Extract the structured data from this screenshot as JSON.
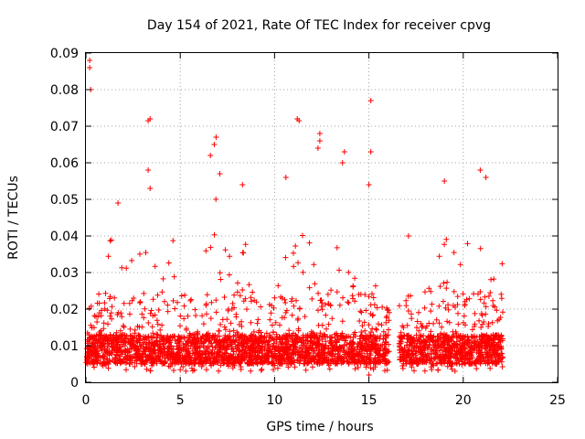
{
  "chart_data": {
    "type": "scatter",
    "title": "Day 154 of 2021, Rate Of TEC Index for receiver cpvg",
    "xlabel": "GPS time / hours",
    "ylabel": "ROTI / TECUs",
    "xlim": [
      0,
      25
    ],
    "ylim": [
      0,
      0.09
    ],
    "x_ticks": [
      0,
      5,
      10,
      15,
      20,
      25
    ],
    "x_tick_labels": [
      "0",
      "5",
      "10",
      "15",
      "20",
      "25"
    ],
    "y_ticks": [
      0,
      0.01,
      0.02,
      0.03,
      0.04,
      0.05,
      0.06,
      0.07,
      0.08,
      0.09
    ],
    "y_tick_labels": [
      "0",
      "0.01",
      "0.02",
      "0.03",
      "0.04",
      "0.05",
      "0.06",
      "0.07",
      "0.08",
      "0.09"
    ],
    "grid": true,
    "marker": "+",
    "color": "#ff0000",
    "x_range_with_data": [
      [
        0,
        16.1
      ],
      [
        16.6,
        22.1
      ]
    ],
    "baseline_band": [
      0.005,
      0.013
    ],
    "notable_points": [
      {
        "x": 0.2,
        "y": 0.088
      },
      {
        "x": 0.2,
        "y": 0.086
      },
      {
        "x": 0.25,
        "y": 0.08
      },
      {
        "x": 3.4,
        "y": 0.072
      },
      {
        "x": 3.3,
        "y": 0.0715
      },
      {
        "x": 3.3,
        "y": 0.058
      },
      {
        "x": 3.4,
        "y": 0.053
      },
      {
        "x": 6.9,
        "y": 0.067
      },
      {
        "x": 6.8,
        "y": 0.065
      },
      {
        "x": 6.6,
        "y": 0.062
      },
      {
        "x": 7.1,
        "y": 0.057
      },
      {
        "x": 11.2,
        "y": 0.072
      },
      {
        "x": 11.3,
        "y": 0.0715
      },
      {
        "x": 12.4,
        "y": 0.068
      },
      {
        "x": 12.4,
        "y": 0.066
      },
      {
        "x": 12.3,
        "y": 0.064
      },
      {
        "x": 13.7,
        "y": 0.063
      },
      {
        "x": 13.6,
        "y": 0.06
      },
      {
        "x": 15.1,
        "y": 0.077
      },
      {
        "x": 15.1,
        "y": 0.063
      },
      {
        "x": 15.0,
        "y": 0.054
      },
      {
        "x": 10.6,
        "y": 0.056
      },
      {
        "x": 20.9,
        "y": 0.058
      },
      {
        "x": 21.2,
        "y": 0.056
      },
      {
        "x": 19.0,
        "y": 0.055
      },
      {
        "x": 1.7,
        "y": 0.049
      },
      {
        "x": 8.3,
        "y": 0.054
      },
      {
        "x": 17.1,
        "y": 0.04
      },
      {
        "x": 15.0,
        "y": 0.002
      }
    ],
    "activity_envelope": [
      {
        "x": 0.0,
        "max": 0.025
      },
      {
        "x": 0.5,
        "max": 0.018
      },
      {
        "x": 1.0,
        "max": 0.035
      },
      {
        "x": 1.5,
        "max": 0.045
      },
      {
        "x": 2.0,
        "max": 0.03
      },
      {
        "x": 2.5,
        "max": 0.04
      },
      {
        "x": 3.0,
        "max": 0.045
      },
      {
        "x": 3.5,
        "max": 0.042
      },
      {
        "x": 4.0,
        "max": 0.036
      },
      {
        "x": 4.5,
        "max": 0.04
      },
      {
        "x": 5.0,
        "max": 0.043
      },
      {
        "x": 5.5,
        "max": 0.03
      },
      {
        "x": 6.0,
        "max": 0.014
      },
      {
        "x": 6.5,
        "max": 0.045
      },
      {
        "x": 7.0,
        "max": 0.055
      },
      {
        "x": 7.5,
        "max": 0.04
      },
      {
        "x": 8.0,
        "max": 0.038
      },
      {
        "x": 8.5,
        "max": 0.043
      },
      {
        "x": 9.0,
        "max": 0.03
      },
      {
        "x": 9.5,
        "max": 0.02
      },
      {
        "x": 10.0,
        "max": 0.025
      },
      {
        "x": 10.5,
        "max": 0.045
      },
      {
        "x": 11.0,
        "max": 0.04
      },
      {
        "x": 11.5,
        "max": 0.045
      },
      {
        "x": 12.0,
        "max": 0.036
      },
      {
        "x": 12.5,
        "max": 0.04
      },
      {
        "x": 13.0,
        "max": 0.032
      },
      {
        "x": 13.5,
        "max": 0.045
      },
      {
        "x": 14.0,
        "max": 0.038
      },
      {
        "x": 14.5,
        "max": 0.028
      },
      {
        "x": 15.0,
        "max": 0.04
      },
      {
        "x": 15.5,
        "max": 0.025
      },
      {
        "x": 16.0,
        "max": 0.02
      },
      {
        "x": 16.8,
        "max": 0.025
      },
      {
        "x": 17.5,
        "max": 0.033
      },
      {
        "x": 18.0,
        "max": 0.03
      },
      {
        "x": 18.5,
        "max": 0.035
      },
      {
        "x": 19.0,
        "max": 0.045
      },
      {
        "x": 19.5,
        "max": 0.038
      },
      {
        "x": 20.0,
        "max": 0.045
      },
      {
        "x": 20.5,
        "max": 0.042
      },
      {
        "x": 21.0,
        "max": 0.05
      },
      {
        "x": 21.5,
        "max": 0.045
      },
      {
        "x": 22.0,
        "max": 0.035
      }
    ]
  }
}
